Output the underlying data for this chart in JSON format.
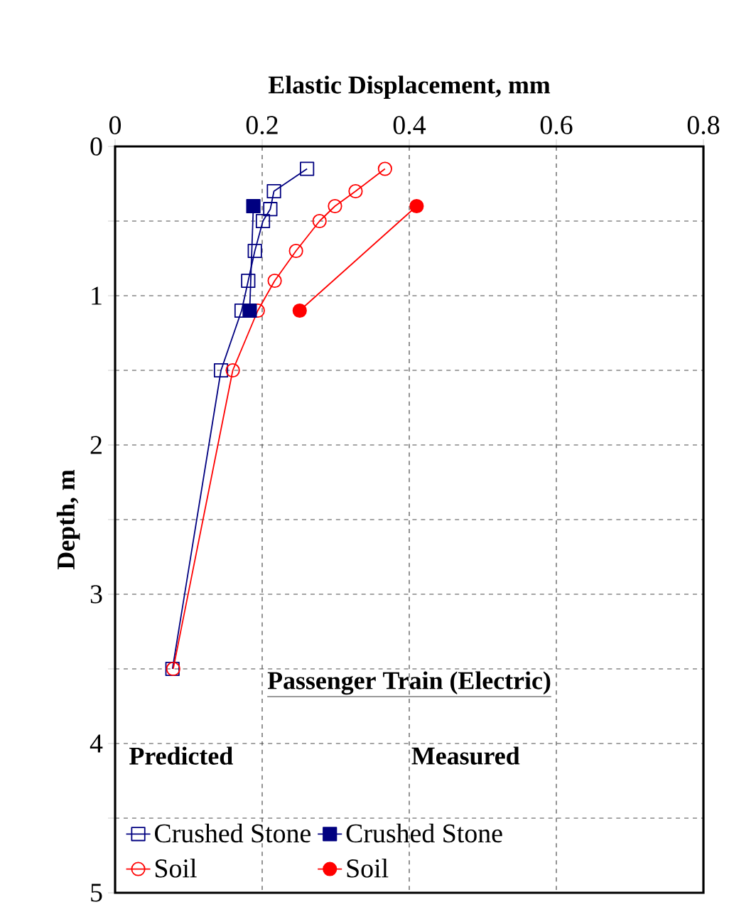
{
  "chart_data": {
    "type": "line",
    "xlabel": "Elastic Displacement, mm",
    "ylabel": "Depth, m",
    "legend_title": "Passenger Train (Electric)",
    "annotations": [
      "Predicted",
      "Measured"
    ],
    "xlim": [
      0,
      0.8
    ],
    "xticks": [
      0,
      0.2,
      0.4,
      0.6,
      0.8
    ],
    "ylim": [
      5,
      0
    ],
    "yticks": [
      0,
      {
        "value": 0.5,
        "label": null
      },
      1,
      {
        "value": 1.5,
        "label": null
      },
      2,
      {
        "value": 2.5,
        "label": null
      },
      3,
      {
        "value": 3.5,
        "label": null
      },
      4,
      {
        "value": 4.5,
        "label": null
      },
      5
    ],
    "grid": true,
    "legend": "bottom left",
    "line_style": "solid",
    "series": [
      {
        "name": "Crushed Stone",
        "color": "#000080",
        "marker": "square",
        "x": [
          0.261,
          0.216,
          0.211,
          0.201,
          0.19,
          0.181,
          0.172,
          0.144,
          0.078
        ],
        "values": [
          0.15,
          0.3,
          0.42,
          0.5,
          0.7,
          0.9,
          1.1,
          1.5,
          3.5
        ]
      },
      {
        "name": "Soil",
        "color": "#ff0000",
        "marker": "circle",
        "x": [
          0.367,
          0.327,
          0.299,
          0.278,
          0.246,
          0.217,
          0.194,
          0.16,
          0.079
        ],
        "values": [
          0.15,
          0.3,
          0.4,
          0.5,
          0.7,
          0.9,
          1.1,
          1.5,
          3.5
        ]
      },
      {
        "name": "Crushed Stone",
        "color": "#000080",
        "marker": "square",
        "x": [
          0.188,
          0.183
        ],
        "values": [
          0.4,
          1.1
        ]
      },
      {
        "name": "Soil",
        "color": "#ff0000",
        "marker": "circle",
        "x": [
          0.41,
          0.251
        ],
        "values": [
          0.4,
          1.1
        ]
      }
    ]
  }
}
